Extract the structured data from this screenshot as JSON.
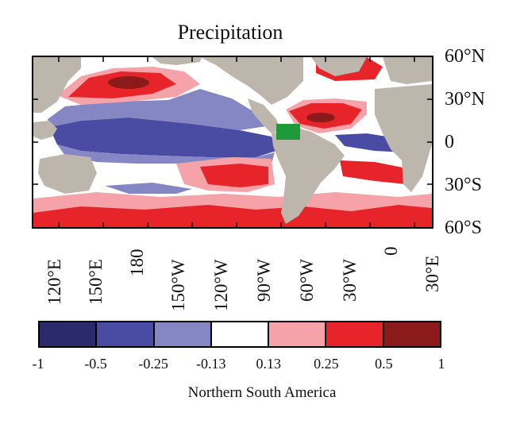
{
  "title": "Precipitation",
  "lat_labels": [
    "60°N",
    "30°N",
    "0",
    "30°S",
    "60°S"
  ],
  "lon_labels": [
    "120°E",
    "150°E",
    "180",
    "150°W",
    "120°W",
    "90°W",
    "60°W",
    "30°W",
    "0",
    "30°E"
  ],
  "colorbar": {
    "title": "Northern South America",
    "tick_labels": [
      "-1",
      "-0.5",
      "-0.25",
      "-0.13",
      "0.13",
      "0.25",
      "0.5",
      "1"
    ],
    "colors": [
      "#2b2a6b",
      "#4a4ba3",
      "#8586c4",
      "#ffffff",
      "#f5a3a8",
      "#e8242b",
      "#8b1a1a"
    ]
  },
  "map_colors": {
    "land": "#bdb6ad",
    "box": "#1f9a3a"
  }
}
